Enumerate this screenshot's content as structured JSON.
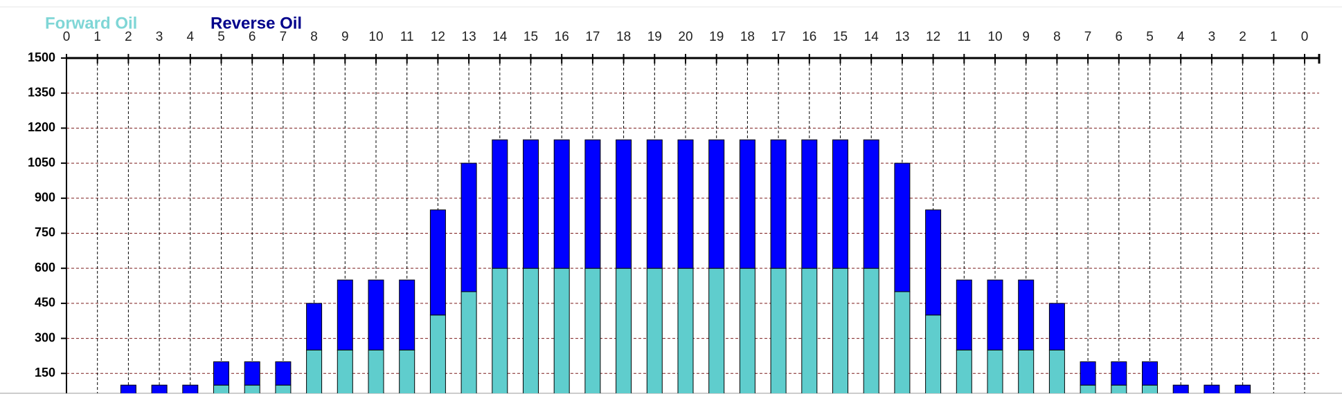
{
  "chart_data": {
    "type": "stacked_bar",
    "categories": [
      "0",
      "1",
      "2",
      "3",
      "4",
      "5",
      "6",
      "7",
      "8",
      "9",
      "10",
      "11",
      "12",
      "13",
      "14",
      "15",
      "16",
      "17",
      "18",
      "19",
      "20",
      "19",
      "18",
      "17",
      "16",
      "15",
      "14",
      "13",
      "12",
      "11",
      "10",
      "9",
      "8",
      "7",
      "6",
      "5",
      "4",
      "3",
      "2",
      "1",
      "0"
    ],
    "series": [
      {
        "name": "Forward Oil",
        "color": "#5fcdcd",
        "legend_color": "#7fd6d6",
        "values": [
          0,
          0,
          50,
          50,
          50,
          100,
          100,
          100,
          250,
          250,
          250,
          250,
          400,
          500,
          600,
          600,
          600,
          600,
          600,
          600,
          600,
          600,
          600,
          600,
          600,
          600,
          600,
          500,
          400,
          250,
          250,
          250,
          250,
          100,
          100,
          100,
          50,
          50,
          50,
          0,
          0
        ]
      },
      {
        "name": "Reverse Oil",
        "color": "#0000ff",
        "legend_color": "#00008b",
        "values": [
          0,
          0,
          50,
          50,
          50,
          100,
          100,
          100,
          200,
          300,
          300,
          300,
          450,
          550,
          550,
          550,
          550,
          550,
          550,
          550,
          550,
          550,
          550,
          550,
          550,
          550,
          550,
          550,
          450,
          300,
          300,
          300,
          200,
          100,
          100,
          100,
          50,
          50,
          50,
          0,
          0
        ]
      }
    ],
    "ylim": [
      65,
      1500
    ],
    "yticks": [
      150,
      300,
      450,
      600,
      750,
      900,
      1050,
      1200,
      1350,
      1500
    ],
    "grid": true
  }
}
